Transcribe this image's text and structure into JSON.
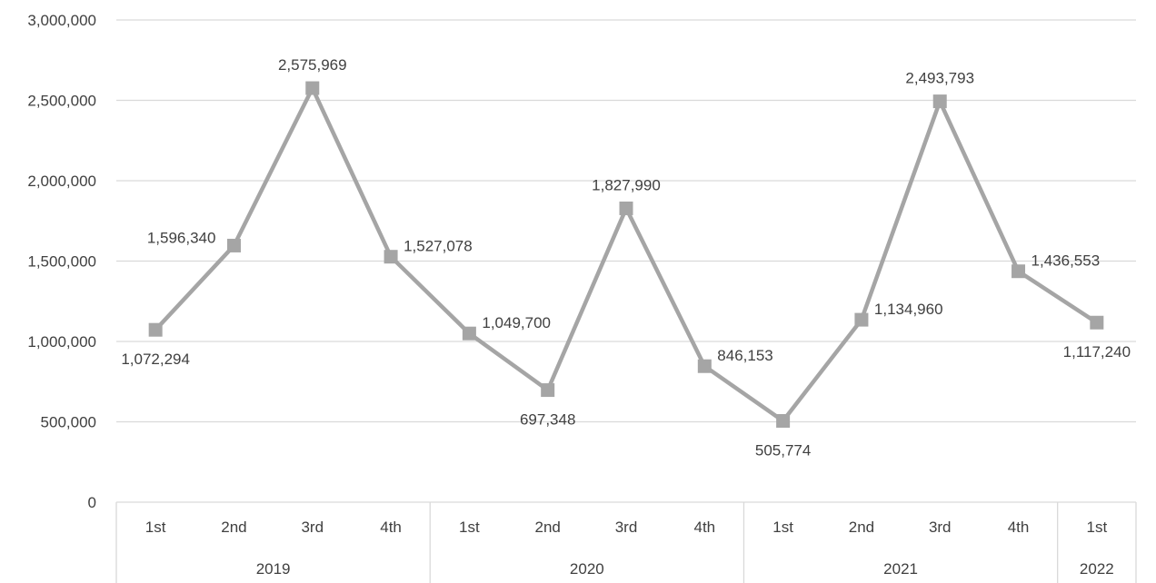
{
  "chart_data": {
    "type": "line",
    "title": "",
    "xlabel": "",
    "ylabel": "",
    "ylim": [
      0,
      3000000
    ],
    "yticks": [
      0,
      500000,
      1000000,
      1500000,
      2000000,
      2500000,
      3000000
    ],
    "ytick_labels": [
      "0",
      "500,000",
      "1,000,000",
      "1,500,000",
      "2,000,000",
      "2,500,000",
      "3,000,000"
    ],
    "grid": true,
    "legend": "none",
    "categories": [
      "1st",
      "2nd",
      "3rd",
      "4th",
      "1st",
      "2nd",
      "3rd",
      "4th",
      "1st",
      "2nd",
      "3rd",
      "4th",
      "1st"
    ],
    "groups": [
      {
        "label": "2019",
        "count": 4
      },
      {
        "label": "2020",
        "count": 4
      },
      {
        "label": "2021",
        "count": 4
      },
      {
        "label": "2022",
        "count": 1
      }
    ],
    "series": [
      {
        "values": [
          1072294,
          1596340,
          2575969,
          1527078,
          1049700,
          697348,
          1827990,
          846153,
          505774,
          1134960,
          2493793,
          1436553,
          1117240
        ],
        "labels": [
          "1,072,294",
          "1,596,340",
          "2,575,969",
          "1,527,078",
          "1,049,700",
          "697,348",
          "1,827,990",
          "846,153",
          "505,774",
          "1,134,960",
          "2,493,793",
          "1,436,553",
          "1,117,240"
        ],
        "color": "#a5a5a5"
      }
    ],
    "label_positions": [
      "below",
      "left",
      "above",
      "right",
      "right",
      "below",
      "above",
      "right",
      "below",
      "right",
      "above",
      "right",
      "below"
    ],
    "colors": {
      "line": "#a5a5a5",
      "grid": "#d9d9d9",
      "text": "#404040"
    }
  }
}
